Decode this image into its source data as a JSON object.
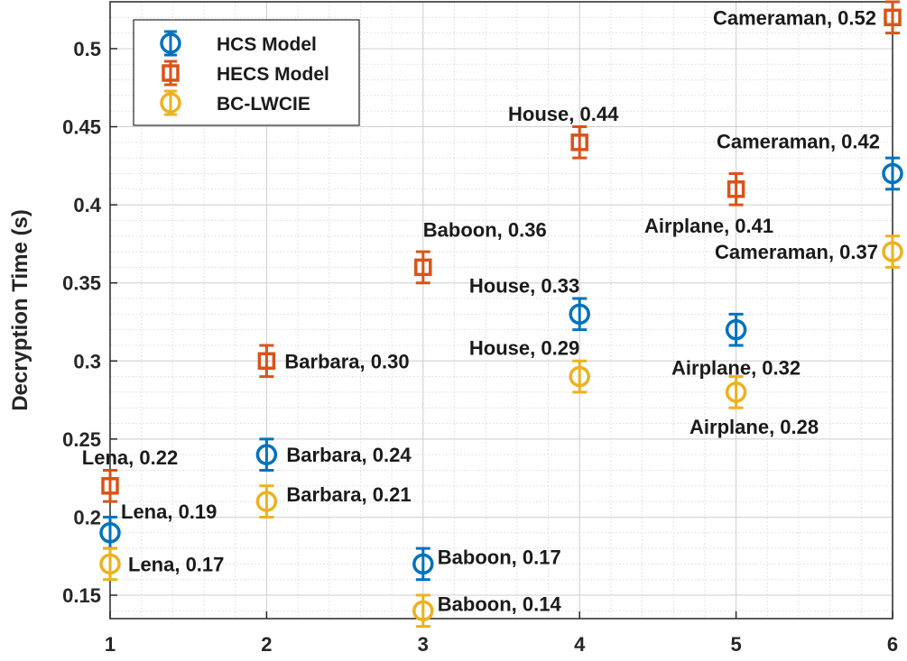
{
  "chart_data": {
    "type": "scatter",
    "title": "",
    "xlabel": "",
    "ylabel": "Decryption Time (s)",
    "xlim": [
      1,
      6
    ],
    "ylim": [
      0.135,
      0.53
    ],
    "xticks": [
      1,
      2,
      3,
      4,
      5,
      6
    ],
    "yticks": [
      0.15,
      0.2,
      0.25,
      0.3,
      0.35,
      0.4,
      0.45,
      0.5
    ],
    "ytick_labels": [
      "0.15",
      "0.2",
      "0.25",
      "0.3",
      "0.35",
      "0.4",
      "0.45",
      "0.5"
    ],
    "grid": "on (major and minor)",
    "legend_position": "top-left",
    "error_bar": 0.01,
    "series": [
      {
        "name": "HCS Model",
        "marker": "circle",
        "color": "#0072BD",
        "x": [
          1,
          2,
          3,
          4,
          5,
          6
        ],
        "y": [
          0.19,
          0.24,
          0.17,
          0.33,
          0.32,
          0.42
        ],
        "labels": [
          "Lena, 0.19",
          "Barbara, 0.24",
          "Baboon, 0.17",
          "House, 0.33",
          "Airplane, 0.32",
          "Cameraman, 0.42"
        ]
      },
      {
        "name": "HECS Model",
        "marker": "square",
        "color": "#D95319",
        "x": [
          1,
          2,
          3,
          4,
          5,
          6
        ],
        "y": [
          0.22,
          0.3,
          0.36,
          0.44,
          0.41,
          0.52
        ],
        "labels": [
          "Lena, 0.22",
          "Barbara, 0.30",
          "Baboon, 0.36",
          "House, 0.44",
          "Airplane, 0.41",
          "Cameraman, 0.52"
        ]
      },
      {
        "name": "BC-LWCIE",
        "marker": "circle",
        "color": "#EDB120",
        "x": [
          1,
          2,
          3,
          4,
          5,
          6
        ],
        "y": [
          0.17,
          0.21,
          0.14,
          0.29,
          0.28,
          0.37
        ],
        "labels": [
          "Lena, 0.17",
          "Barbara, 0.21",
          "Baboon, 0.14",
          "House, 0.29",
          "Airplane, 0.28",
          "Cameraman, 0.37"
        ]
      }
    ]
  }
}
